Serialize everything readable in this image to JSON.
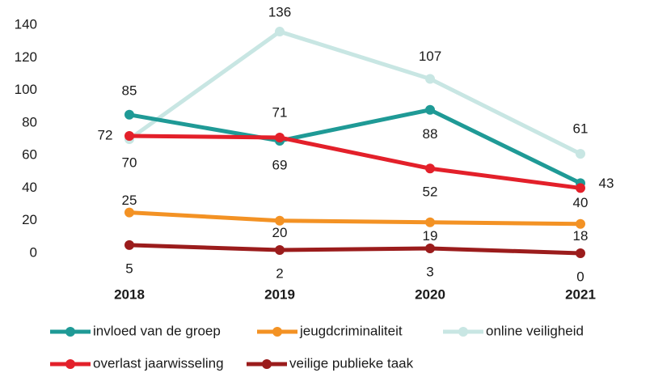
{
  "chart_data": {
    "type": "line",
    "categories": [
      "2018",
      "2019",
      "2020",
      "2021"
    ],
    "series": [
      {
        "name": "invloed van de groep",
        "color": "#1f9a96",
        "values": [
          85,
          69,
          88,
          43
        ]
      },
      {
        "name": "jeugdcriminaliteit",
        "color": "#f39224",
        "values": [
          25,
          20,
          19,
          18
        ]
      },
      {
        "name": "online veiligheid",
        "color": "#c8e6e3",
        "values": [
          70,
          136,
          107,
          61
        ]
      },
      {
        "name": "overlast jaarwisseling",
        "color": "#e3202a",
        "values": [
          72,
          71,
          52,
          40
        ]
      },
      {
        "name": "veilige publieke taak",
        "color": "#9b1c1c",
        "values": [
          5,
          2,
          3,
          0
        ]
      }
    ],
    "ylim": [
      0,
      140
    ],
    "yticks": [
      0,
      20,
      40,
      60,
      80,
      100,
      120,
      140
    ],
    "grid": false,
    "legend": "bottom"
  }
}
